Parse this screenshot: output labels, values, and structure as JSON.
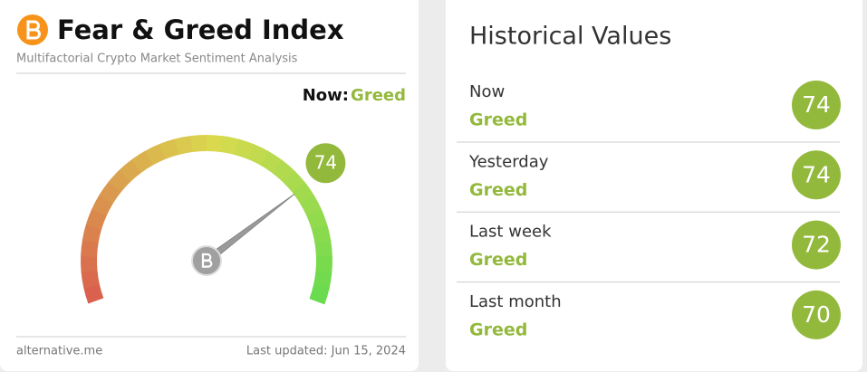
{
  "header": {
    "title": "Fear & Greed Index",
    "subtitle": "Multifactorial Crypto Market Sentiment Analysis"
  },
  "now": {
    "label": "Now:",
    "status": "Greed"
  },
  "gauge": {
    "value": 74
  },
  "footer": {
    "source": "alternative.me",
    "updated": "Last updated: Jun 15, 2024"
  },
  "historical": {
    "title": "Historical Values",
    "rows": [
      {
        "period": "Now",
        "status": "Greed",
        "value": 74
      },
      {
        "period": "Yesterday",
        "status": "Greed",
        "value": 74
      },
      {
        "period": "Last week",
        "status": "Greed",
        "value": 72
      },
      {
        "period": "Last month",
        "status": "Greed",
        "value": 70
      }
    ]
  }
}
